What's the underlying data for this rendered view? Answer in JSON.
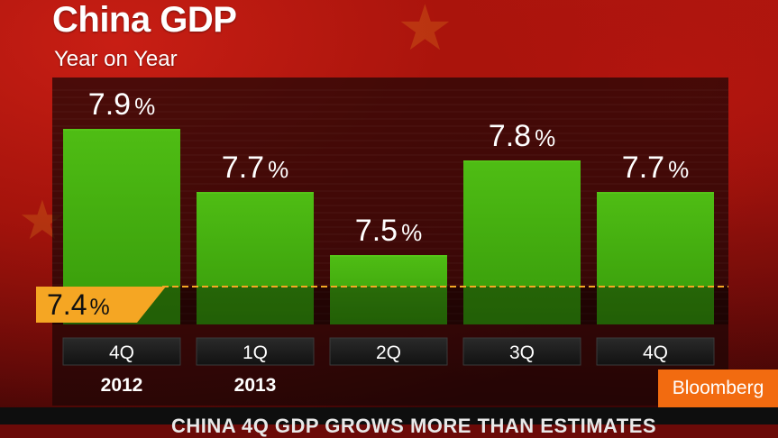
{
  "title": "China GDP",
  "subtitle": "Year on Year",
  "logo": "Bloomberg",
  "ticker": "CHINA 4Q GDP GROWS MORE THAN ESTIMATES",
  "colors": {
    "bar": "#3ea80c",
    "bar_highlight": "#55c418",
    "target_line": "#f5a623",
    "target_badge": "#f5a623",
    "axis_label_box": "#1e1e1e",
    "logo": "#f26b10"
  },
  "chart_data": {
    "type": "bar",
    "title": "China GDP",
    "subtitle": "Year on Year",
    "categories": [
      "4Q",
      "1Q",
      "2Q",
      "3Q",
      "4Q"
    ],
    "years": [
      {
        "label": "2012",
        "start_index": 0
      },
      {
        "label": "2013",
        "start_index": 1
      }
    ],
    "values": [
      7.9,
      7.7,
      7.5,
      7.8,
      7.7
    ],
    "value_labels": [
      "7.9",
      "7.7",
      "7.5",
      "7.8",
      "7.7"
    ],
    "unit": "%",
    "reference_line": {
      "value": 7.4,
      "label": "7.4",
      "unit": "%"
    },
    "xlabel": "",
    "ylabel": "",
    "ylim": [
      7.28,
      8.08
    ],
    "grid": true,
    "legend": "none"
  }
}
